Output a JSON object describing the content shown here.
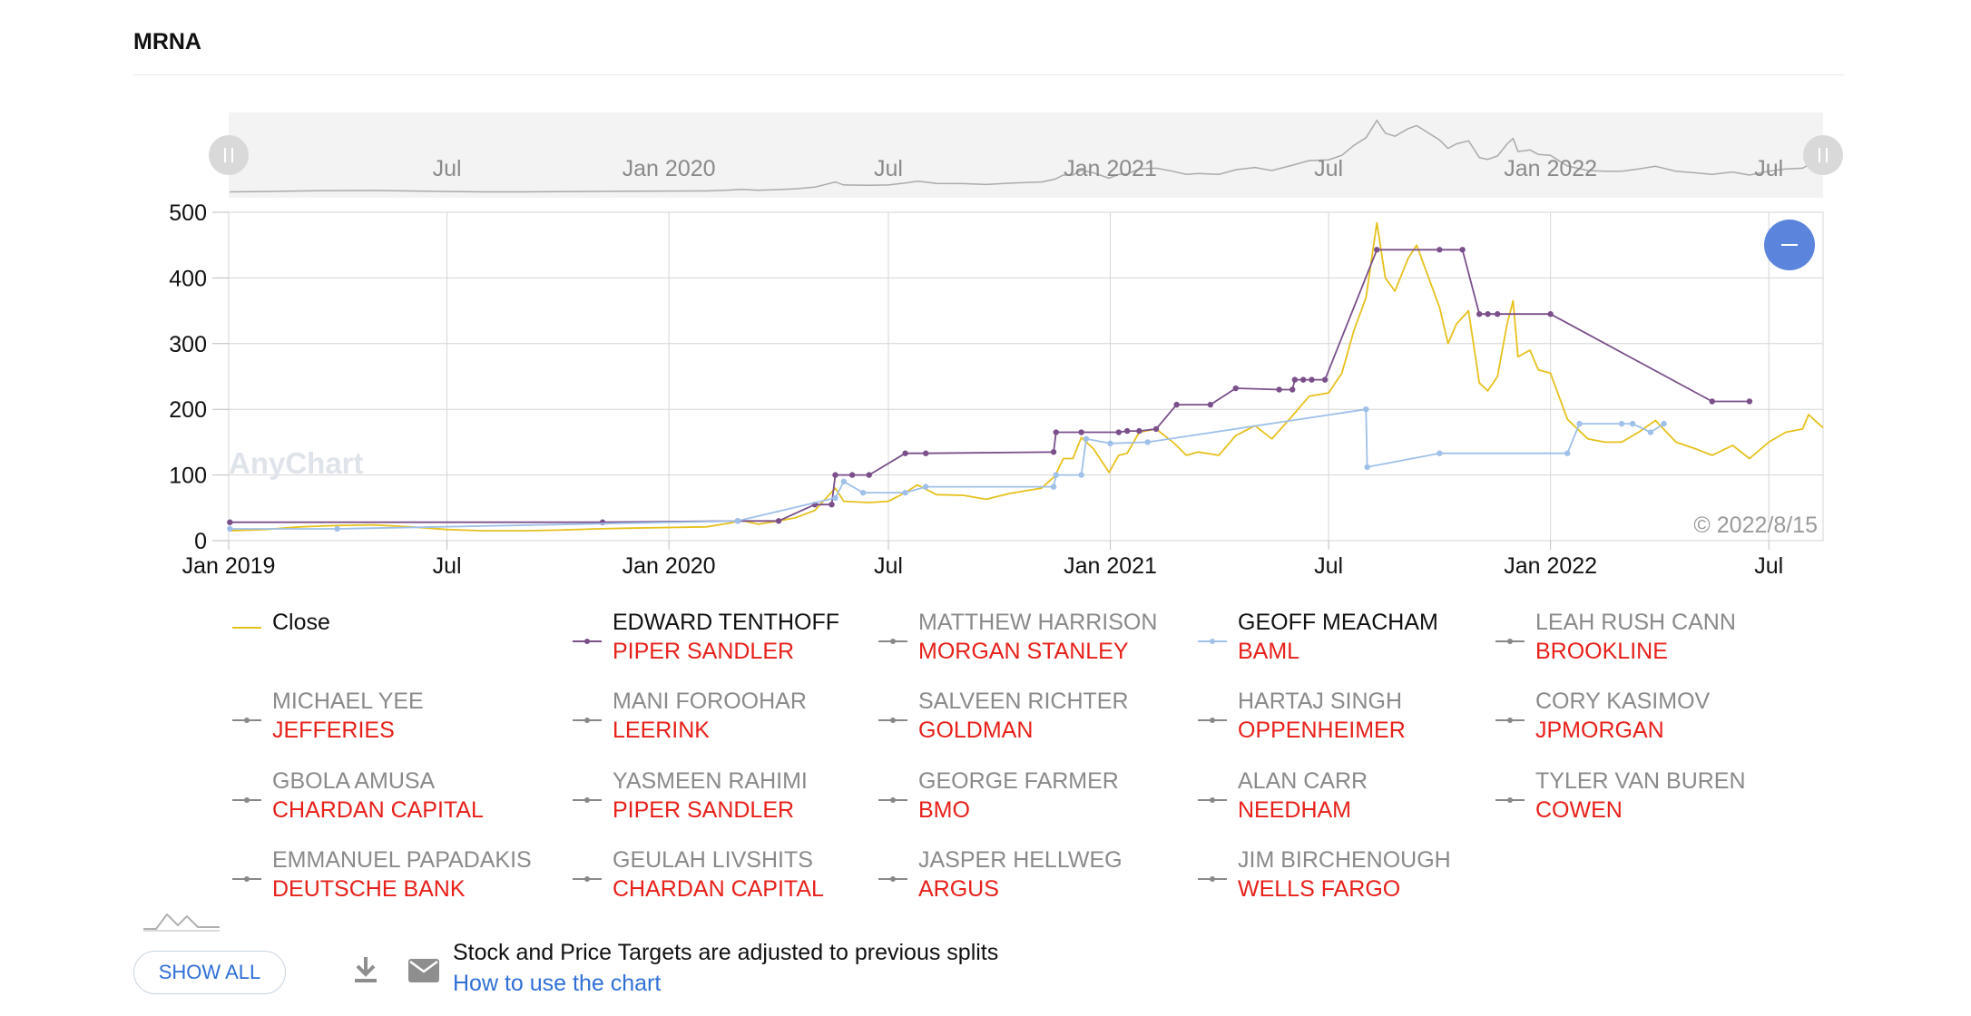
{
  "header": {
    "title": "MRNA"
  },
  "navigator": {
    "labels": [
      "Jul",
      "Jan 2020",
      "Jul",
      "Jan 2021",
      "Jul",
      "Jan 2022",
      "Jul"
    ]
  },
  "watermark": "AnyChart",
  "copyright": "© 2022/8/15",
  "zoom_button_icon": "minus-icon",
  "footer": {
    "show_all_label": "SHOW ALL",
    "download_icon": "download-icon",
    "mail_icon": "mail-icon",
    "note": "Stock and Price Targets are adjusted to previous splits",
    "how_to_link": "How to use the chart"
  },
  "legend": [
    {
      "name": "Close",
      "firm": "",
      "color": "#e6c11d",
      "active": true,
      "kind": "close"
    },
    {
      "name": "EDWARD TENTHOFF",
      "firm": "PIPER SANDLER",
      "color": "#7a4f8a",
      "active": true
    },
    {
      "name": "MATTHEW HARRISON",
      "firm": "MORGAN STANLEY",
      "color": "#888888",
      "active": false
    },
    {
      "name": "GEOFF MEACHAM",
      "firm": "BAML",
      "color": "#9fc0e8",
      "active": true
    },
    {
      "name": "LEAH RUSH CANN",
      "firm": "BROOKLINE",
      "color": "#888888",
      "active": false
    },
    {
      "name": "MICHAEL YEE",
      "firm": "JEFFERIES",
      "color": "#888888",
      "active": false
    },
    {
      "name": "MANI FOROOHAR",
      "firm": "LEERINK",
      "color": "#888888",
      "active": false
    },
    {
      "name": "SALVEEN RICHTER",
      "firm": "GOLDMAN",
      "color": "#888888",
      "active": false
    },
    {
      "name": "HARTAJ SINGH",
      "firm": "OPPENHEIMER",
      "color": "#888888",
      "active": false
    },
    {
      "name": "CORY KASIMOV",
      "firm": "JPMORGAN",
      "color": "#888888",
      "active": false
    },
    {
      "name": "GBOLA AMUSA",
      "firm": "CHARDAN CAPITAL",
      "color": "#888888",
      "active": false
    },
    {
      "name": "YASMEEN RAHIMI",
      "firm": "PIPER SANDLER",
      "color": "#888888",
      "active": false
    },
    {
      "name": "GEORGE FARMER",
      "firm": "BMO",
      "color": "#888888",
      "active": false
    },
    {
      "name": "ALAN CARR",
      "firm": "NEEDHAM",
      "color": "#888888",
      "active": false
    },
    {
      "name": "TYLER VAN BUREN",
      "firm": "COWEN",
      "color": "#888888",
      "active": false
    },
    {
      "name": "EMMANUEL PAPADAKIS",
      "firm": "DEUTSCHE BANK",
      "color": "#888888",
      "active": false
    },
    {
      "name": "GEULAH LIVSHITS",
      "firm": "CHARDAN CAPITAL",
      "color": "#888888",
      "active": false
    },
    {
      "name": "JASPER HELLWEG",
      "firm": "ARGUS",
      "color": "#888888",
      "active": false
    },
    {
      "name": "JIM BIRCHENOUGH",
      "firm": "WELLS FARGO",
      "color": "#888888",
      "active": false
    }
  ],
  "chart_data": {
    "type": "line",
    "title": "MRNA",
    "xlabel": "",
    "ylabel": "",
    "x_range": [
      "2019-01-01",
      "2022-08-15"
    ],
    "ylim": [
      0,
      500
    ],
    "y_ticks": [
      0,
      100,
      200,
      300,
      400,
      500
    ],
    "x_ticks": [
      {
        "date": "2019-01-01",
        "label": "Jan 2019"
      },
      {
        "date": "2019-07-01",
        "label": "Jul"
      },
      {
        "date": "2020-01-01",
        "label": "Jan 2020"
      },
      {
        "date": "2020-07-01",
        "label": "Jul"
      },
      {
        "date": "2021-01-01",
        "label": "Jan 2021"
      },
      {
        "date": "2021-07-01",
        "label": "Jul"
      },
      {
        "date": "2022-01-01",
        "label": "Jan 2022"
      },
      {
        "date": "2022-07-01",
        "label": "Jul"
      }
    ],
    "grid": true,
    "legend_position": "bottom",
    "series": [
      {
        "name": "Close",
        "color": "#e6c11d",
        "step": false,
        "points": [
          [
            "2019-01-02",
            15
          ],
          [
            "2019-02-01",
            17
          ],
          [
            "2019-03-01",
            21
          ],
          [
            "2019-03-15",
            22
          ],
          [
            "2019-04-01",
            23
          ],
          [
            "2019-05-01",
            24
          ],
          [
            "2019-06-01",
            21
          ],
          [
            "2019-07-01",
            17
          ],
          [
            "2019-08-01",
            15
          ],
          [
            "2019-09-01",
            15
          ],
          [
            "2019-10-01",
            16
          ],
          [
            "2019-11-01",
            18
          ],
          [
            "2019-12-01",
            19
          ],
          [
            "2020-01-01",
            20
          ],
          [
            "2020-02-01",
            21
          ],
          [
            "2020-02-21",
            27
          ],
          [
            "2020-03-01",
            31
          ],
          [
            "2020-03-15",
            25
          ],
          [
            "2020-04-01",
            30
          ],
          [
            "2020-04-15",
            35
          ],
          [
            "2020-05-01",
            46
          ],
          [
            "2020-05-18",
            80
          ],
          [
            "2020-05-25",
            60
          ],
          [
            "2020-06-15",
            58
          ],
          [
            "2020-07-01",
            60
          ],
          [
            "2020-07-15",
            73
          ],
          [
            "2020-07-25",
            85
          ],
          [
            "2020-08-10",
            70
          ],
          [
            "2020-09-01",
            69
          ],
          [
            "2020-09-20",
            63
          ],
          [
            "2020-10-10",
            72
          ],
          [
            "2020-11-05",
            80
          ],
          [
            "2020-11-16",
            98
          ],
          [
            "2020-11-23",
            125
          ],
          [
            "2020-12-01",
            125
          ],
          [
            "2020-12-08",
            157
          ],
          [
            "2020-12-18",
            140
          ],
          [
            "2020-12-31",
            104
          ],
          [
            "2021-01-08",
            130
          ],
          [
            "2021-01-15",
            133
          ],
          [
            "2021-01-25",
            165
          ],
          [
            "2021-02-08",
            170
          ],
          [
            "2021-02-22",
            150
          ],
          [
            "2021-03-05",
            130
          ],
          [
            "2021-03-15",
            135
          ],
          [
            "2021-04-01",
            130
          ],
          [
            "2021-04-15",
            160
          ],
          [
            "2021-05-01",
            175
          ],
          [
            "2021-05-15",
            155
          ],
          [
            "2021-06-01",
            190
          ],
          [
            "2021-06-15",
            220
          ],
          [
            "2021-07-01",
            225
          ],
          [
            "2021-07-12",
            255
          ],
          [
            "2021-07-22",
            320
          ],
          [
            "2021-08-01",
            370
          ],
          [
            "2021-08-10",
            484
          ],
          [
            "2021-08-17",
            400
          ],
          [
            "2021-08-25",
            380
          ],
          [
            "2021-09-05",
            430
          ],
          [
            "2021-09-12",
            450
          ],
          [
            "2021-09-22",
            400
          ],
          [
            "2021-10-01",
            355
          ],
          [
            "2021-10-08",
            300
          ],
          [
            "2021-10-15",
            330
          ],
          [
            "2021-10-25",
            350
          ],
          [
            "2021-11-03",
            240
          ],
          [
            "2021-11-10",
            228
          ],
          [
            "2021-11-18",
            250
          ],
          [
            "2021-11-26",
            330
          ],
          [
            "2021-12-01",
            365
          ],
          [
            "2021-12-05",
            280
          ],
          [
            "2021-12-15",
            290
          ],
          [
            "2021-12-22",
            260
          ],
          [
            "2022-01-01",
            255
          ],
          [
            "2022-01-15",
            185
          ],
          [
            "2022-02-01",
            155
          ],
          [
            "2022-02-15",
            150
          ],
          [
            "2022-03-01",
            150
          ],
          [
            "2022-03-15",
            165
          ],
          [
            "2022-03-29",
            183
          ],
          [
            "2022-04-15",
            150
          ],
          [
            "2022-05-01",
            140
          ],
          [
            "2022-05-15",
            130
          ],
          [
            "2022-06-01",
            145
          ],
          [
            "2022-06-15",
            125
          ],
          [
            "2022-07-01",
            150
          ],
          [
            "2022-07-15",
            165
          ],
          [
            "2022-07-29",
            170
          ],
          [
            "2022-08-03",
            192
          ],
          [
            "2022-08-10",
            180
          ],
          [
            "2022-08-15",
            172
          ]
        ]
      },
      {
        "name": "EDWARD TENTHOFF",
        "color": "#7a4f8a",
        "step": true,
        "points": [
          [
            "2019-01-02",
            28
          ],
          [
            "2019-11-07",
            28
          ],
          [
            "2020-02-27",
            30
          ],
          [
            "2020-04-01",
            30
          ],
          [
            "2020-05-01",
            55
          ],
          [
            "2020-05-15",
            55
          ],
          [
            "2020-05-18",
            100
          ],
          [
            "2020-06-01",
            100
          ],
          [
            "2020-06-15",
            100
          ],
          [
            "2020-07-15",
            133
          ],
          [
            "2020-08-01",
            133
          ],
          [
            "2020-11-15",
            135
          ],
          [
            "2020-11-17",
            165
          ],
          [
            "2020-12-08",
            165
          ],
          [
            "2021-01-08",
            165
          ],
          [
            "2021-01-15",
            167
          ],
          [
            "2021-01-25",
            167
          ],
          [
            "2021-02-08",
            170
          ],
          [
            "2021-02-25",
            207
          ],
          [
            "2021-03-25",
            207
          ],
          [
            "2021-04-15",
            232
          ],
          [
            "2021-05-21",
            230
          ],
          [
            "2021-06-01",
            230
          ],
          [
            "2021-06-03",
            245
          ],
          [
            "2021-06-10",
            245
          ],
          [
            "2021-06-17",
            245
          ],
          [
            "2021-06-28",
            245
          ],
          [
            "2021-08-10",
            443
          ],
          [
            "2021-10-01",
            443
          ],
          [
            "2021-10-20",
            443
          ],
          [
            "2021-11-03",
            345
          ],
          [
            "2021-11-10",
            345
          ],
          [
            "2021-11-18",
            345
          ],
          [
            "2022-01-01",
            345
          ],
          [
            "2022-05-15",
            212
          ],
          [
            "2022-06-15",
            212
          ]
        ]
      },
      {
        "name": "GEOFF MEACHAM",
        "color": "#9fc0e8",
        "step": false,
        "points": [
          [
            "2019-01-02",
            18
          ],
          [
            "2019-04-01",
            18
          ],
          [
            "2020-02-27",
            30
          ],
          [
            "2020-05-18",
            65
          ],
          [
            "2020-05-25",
            90
          ],
          [
            "2020-06-10",
            73
          ],
          [
            "2020-07-15",
            73
          ],
          [
            "2020-08-01",
            82
          ],
          [
            "2020-11-15",
            82
          ],
          [
            "2020-11-17",
            100
          ],
          [
            "2020-12-08",
            100
          ],
          [
            "2020-12-12",
            155
          ],
          [
            "2021-01-01",
            148
          ],
          [
            "2021-02-01",
            150
          ],
          [
            "2021-08-01",
            200
          ],
          [
            "2021-08-02",
            112
          ],
          [
            "2021-10-01",
            133
          ],
          [
            "2022-01-15",
            133
          ],
          [
            "2022-01-25",
            178
          ],
          [
            "2022-03-01",
            178
          ],
          [
            "2022-03-10",
            178
          ],
          [
            "2022-03-25",
            165
          ],
          [
            "2022-04-05",
            178
          ]
        ]
      }
    ]
  }
}
